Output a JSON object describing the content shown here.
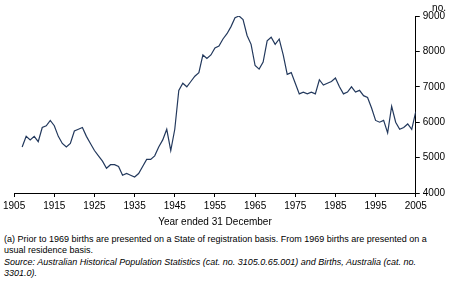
{
  "chart_data": {
    "type": "line",
    "ylabel": "no.",
    "xlabel": "Year ended 31 December",
    "x": [
      1907,
      1908,
      1909,
      1910,
      1911,
      1912,
      1913,
      1914,
      1915,
      1916,
      1917,
      1918,
      1919,
      1920,
      1921,
      1922,
      1923,
      1924,
      1925,
      1926,
      1927,
      1928,
      1929,
      1930,
      1931,
      1932,
      1933,
      1934,
      1935,
      1936,
      1937,
      1938,
      1939,
      1940,
      1941,
      1942,
      1943,
      1944,
      1945,
      1946,
      1947,
      1948,
      1949,
      1950,
      1951,
      1952,
      1953,
      1954,
      1955,
      1956,
      1957,
      1958,
      1959,
      1960,
      1961,
      1962,
      1963,
      1964,
      1965,
      1966,
      1967,
      1968,
      1969,
      1970,
      1971,
      1972,
      1973,
      1974,
      1975,
      1976,
      1977,
      1978,
      1979,
      1980,
      1981,
      1982,
      1983,
      1984,
      1985,
      1986,
      1987,
      1988,
      1989,
      1990,
      1991,
      1992,
      1993,
      1994,
      1995,
      1996,
      1997,
      1998,
      1999,
      2000,
      2001,
      2002,
      2003,
      2004,
      2005
    ],
    "values": [
      5300,
      5600,
      5500,
      5600,
      5450,
      5850,
      5900,
      6050,
      5900,
      5600,
      5400,
      5300,
      5400,
      5750,
      5800,
      5850,
      5600,
      5400,
      5200,
      5050,
      4900,
      4700,
      4800,
      4800,
      4750,
      4500,
      4550,
      4500,
      4450,
      4550,
      4750,
      4950,
      4950,
      5050,
      5300,
      5500,
      5800,
      5200,
      5800,
      6900,
      7100,
      7000,
      7150,
      7300,
      7400,
      7900,
      7800,
      7900,
      8100,
      8150,
      8350,
      8500,
      8700,
      8950,
      9000,
      8900,
      8450,
      8200,
      7600,
      7500,
      7700,
      8300,
      8400,
      8200,
      8350,
      7900,
      7350,
      7400,
      7100,
      6800,
      6850,
      6800,
      6850,
      6800,
      7200,
      7050,
      7100,
      7150,
      7250,
      7000,
      6800,
      6850,
      7000,
      6850,
      6900,
      6750,
      6700,
      6400,
      6050,
      6000,
      6050,
      5700,
      6450,
      6000,
      5800,
      5850,
      5950,
      5800,
      6300
    ],
    "color": "#23395d",
    "xlim": [
      1905,
      2005
    ],
    "xticks": [
      1905,
      1915,
      1925,
      1935,
      1945,
      1955,
      1965,
      1975,
      1985,
      1995,
      2005
    ],
    "ylim": [
      4000,
      9000
    ],
    "yticks": [
      4000,
      5000,
      6000,
      7000,
      8000,
      9000
    ],
    "grid": false,
    "notes": [
      "(a) Prior to 1969 births are presented on a State of registration basis. From 1969 births are presented on a usual residence basis."
    ],
    "source": "Source: Australian Historical Population Statistics (cat. no. 3105.0.65.001) and Births, Australia (cat. no. 3301.0)."
  }
}
